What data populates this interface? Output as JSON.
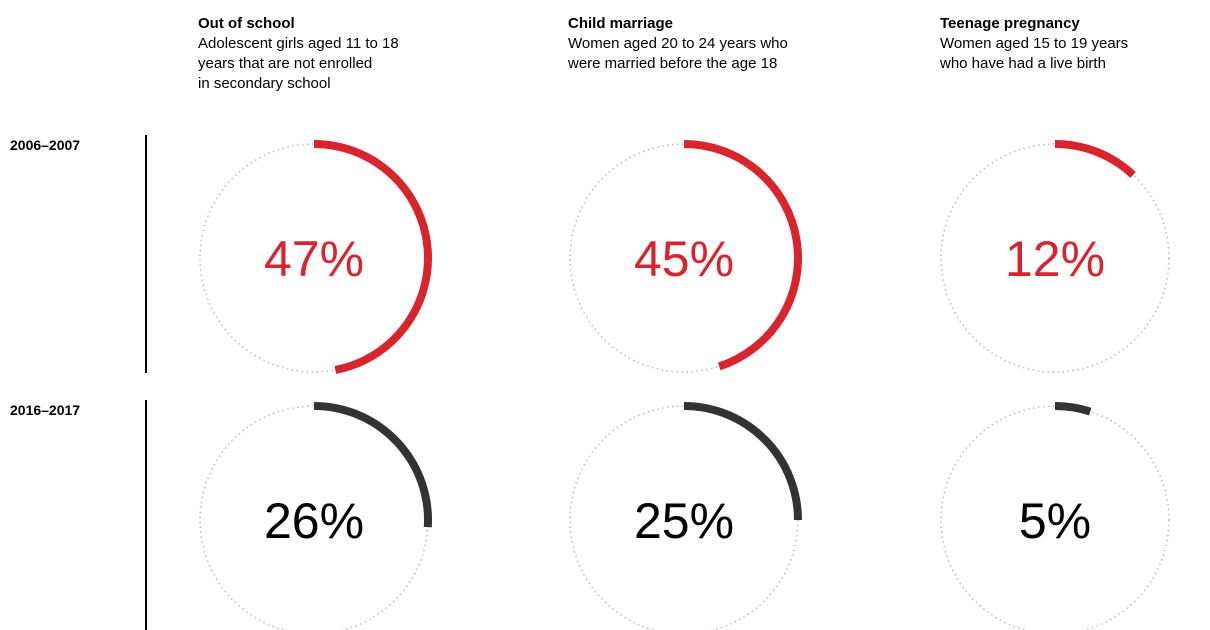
{
  "chart_data": {
    "type": "radial-progress",
    "columns": [
      {
        "title": "Out of school",
        "description": "Adolescent girls aged 11 to 18\nyears that are not enrolled\nin secondary school"
      },
      {
        "title": "Child marriage",
        "description": "Women aged 20 to 24 years who\nwere married before the age 18"
      },
      {
        "title": "Teenage pregnancy",
        "description": "Women aged 15 to 19 years\nwho have had a live birth"
      }
    ],
    "rows": [
      {
        "label": "2006–2007",
        "color": "#d7242d",
        "values": [
          47,
          45,
          12
        ]
      },
      {
        "label": "2016–2017",
        "color": "#333333",
        "values": [
          26,
          25,
          5
        ]
      }
    ],
    "unit": "%",
    "track_color": "#bbbbbb"
  }
}
